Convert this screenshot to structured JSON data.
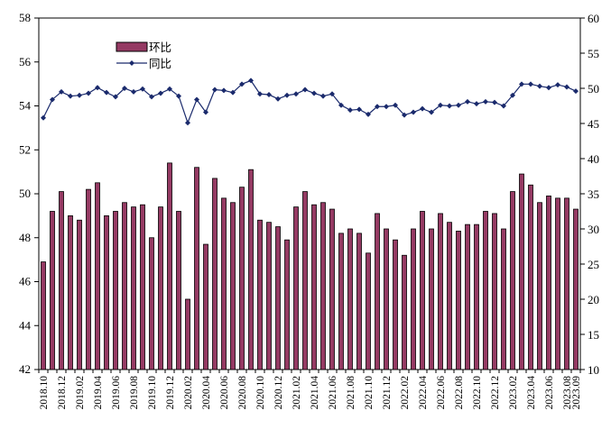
{
  "chart_data": {
    "type": "bar",
    "combo": "bar + line (dual axis)",
    "categories": [
      "2018.10",
      "2018.11",
      "2018.12",
      "2019.01",
      "2019.02",
      "2019.03",
      "2019.04",
      "2019.05",
      "2019.06",
      "2019.07",
      "2019.08",
      "2019.09",
      "2019.10",
      "2019.11",
      "2019.12",
      "2020.01",
      "2020.02",
      "2020.03",
      "2020.04",
      "2020.05",
      "2020.06",
      "2020.07",
      "2020.08",
      "2020.09",
      "2020.10",
      "2020.11",
      "2020.12",
      "2021.01",
      "2021.02",
      "2021.03",
      "2021.04",
      "2021.05",
      "2021.06",
      "2021.07",
      "2021.08",
      "2021.09",
      "2021.10",
      "2021.11",
      "2021.12",
      "2022.01",
      "2022.02",
      "2022.03",
      "2022.04",
      "2022.05",
      "2022.06",
      "2022.07",
      "2022.08",
      "2022.09",
      "2022.10",
      "2022.11",
      "2022.12",
      "2023.01",
      "2023.02",
      "2023.03",
      "2023.04",
      "2023.05",
      "2023.06",
      "2023.07",
      "2023.08",
      "2023.09"
    ],
    "x_tick_labels": [
      "2018.10",
      "2018.12",
      "2019.02",
      "2019.04",
      "2019.06",
      "2019.08",
      "2019.10",
      "2019.12",
      "2020.02",
      "2020.04",
      "2020.06",
      "2020.08",
      "2020.10",
      "2020.12",
      "2021.02",
      "2021.04",
      "2021.06",
      "2021.08",
      "2021.10",
      "2021.12",
      "2022.02",
      "2022.04",
      "2022.06",
      "2022.08",
      "2022.10",
      "2022.12",
      "2023.02",
      "2023.04",
      "2023.06",
      "2023.08",
      "2023.09"
    ],
    "series": [
      {
        "name": "环比",
        "kind": "bar",
        "axis": "left",
        "color": "#953a63",
        "values": [
          46.9,
          49.2,
          50.1,
          49.0,
          48.8,
          50.2,
          50.5,
          49.0,
          49.2,
          49.6,
          49.4,
          49.5,
          48.0,
          49.4,
          51.4,
          49.2,
          45.2,
          51.2,
          47.7,
          50.7,
          49.8,
          49.6,
          50.3,
          51.1,
          48.8,
          48.7,
          48.5,
          47.9,
          49.4,
          50.1,
          49.5,
          49.6,
          49.3,
          48.2,
          48.4,
          48.2,
          47.3,
          49.1,
          48.4,
          47.9,
          47.2,
          48.4,
          49.2,
          48.4,
          49.1,
          48.7,
          48.3,
          48.6,
          48.6,
          49.2,
          49.1,
          48.4,
          50.1,
          50.9,
          50.4,
          49.6,
          49.9,
          49.8,
          49.8,
          49.3
        ]
      },
      {
        "name": "同比",
        "kind": "line",
        "axis": "right",
        "color": "#1a2a6c",
        "values": [
          45.8,
          48.4,
          49.5,
          48.9,
          49.0,
          49.3,
          50.1,
          49.4,
          48.8,
          50.0,
          49.5,
          49.9,
          48.8,
          49.3,
          49.9,
          48.9,
          45.1,
          48.4,
          46.6,
          49.8,
          49.7,
          49.4,
          50.6,
          51.1,
          49.2,
          49.1,
          48.5,
          49.0,
          49.2,
          49.8,
          49.3,
          48.9,
          49.2,
          47.6,
          46.9,
          47.0,
          46.3,
          47.4,
          47.4,
          47.6,
          46.2,
          46.6,
          47.1,
          46.6,
          47.6,
          47.5,
          47.6,
          48.1,
          47.8,
          48.1,
          48.0,
          47.5,
          49.0,
          50.6,
          50.6,
          50.3,
          50.1,
          50.5,
          50.2,
          49.6
        ]
      }
    ],
    "y_left": {
      "min": 42,
      "max": 58,
      "step": 2,
      "ticks": [
        "42",
        "44",
        "46",
        "48",
        "50",
        "52",
        "54",
        "56",
        "58"
      ]
    },
    "y_right": {
      "min": 10,
      "max": 60,
      "step": 5,
      "ticks": [
        "10",
        "15",
        "20",
        "25",
        "30",
        "35",
        "40",
        "45",
        "50",
        "55",
        "60"
      ]
    },
    "grid": false,
    "legend_position": "top-left",
    "colors": {
      "bar_fill": "#953a63",
      "bar_stroke": "#000000",
      "line": "#1a2a6c"
    }
  }
}
